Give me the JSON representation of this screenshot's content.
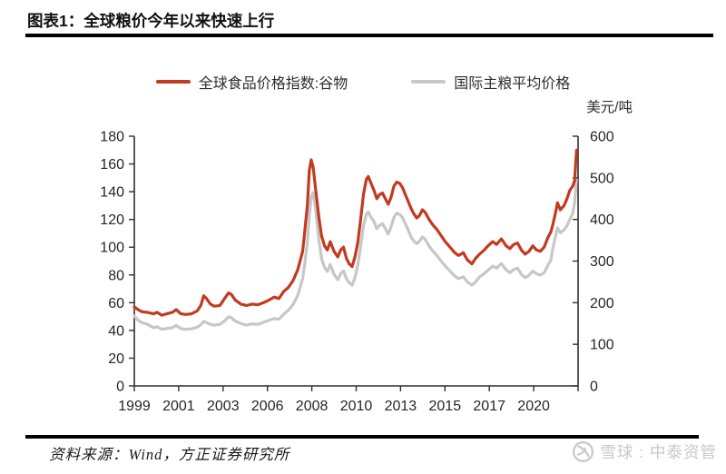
{
  "header": {
    "title": "图表1：全球粮价今年以来快速上行"
  },
  "footer": {
    "source": "资料来源：Wind，方正证券研究所",
    "watermark": "雪球 : 中泰资管",
    "logo_icon": "xueqiu-snowball-icon"
  },
  "colors": {
    "red_line": "#c23a20",
    "gray_line": "#c7c7c7",
    "axis": "#2f2f2f",
    "text": "#262626",
    "rule": "#000000",
    "watermark": "#c8c8c8"
  },
  "chart_data": {
    "type": "line",
    "title": "全球粮价今年以来快速上行",
    "unit_label": "美元/吨",
    "legend_position": "top-center",
    "grid": false,
    "legend": [
      {
        "name": "全球食品价格指数:谷物",
        "color_key": "red_line",
        "axis": "left"
      },
      {
        "name": "国际主粮平均价格",
        "color_key": "gray_line",
        "axis": "right"
      }
    ],
    "left_axis": {
      "min": 0,
      "max": 180,
      "step": 20,
      "ticks": [
        0,
        20,
        40,
        60,
        80,
        100,
        120,
        140,
        160,
        180
      ]
    },
    "right_axis": {
      "min": 0,
      "max": 600,
      "step": 100,
      "label": "美元/吨",
      "ticks": [
        0,
        100,
        200,
        300,
        400,
        500,
        600
      ]
    },
    "x_axis": {
      "start_year": 1999,
      "months_per_tick": 28,
      "num_ticks": 11,
      "tick_labels": [
        "1999",
        "2001",
        "2003",
        "2006",
        "2008",
        "2010",
        "2013",
        "2015",
        "2017",
        "2020"
      ]
    },
    "years": [
      1999.0,
      1999.2,
      1999.4,
      1999.7,
      2000.0,
      2000.2,
      2000.45,
      2000.7,
      2001.0,
      2001.2,
      2001.45,
      2001.7,
      2002.0,
      2002.3,
      2002.5,
      2002.65,
      2002.8,
      2003.0,
      2003.2,
      2003.5,
      2003.75,
      2003.95,
      2004.1,
      2004.3,
      2004.6,
      2004.9,
      2005.2,
      2005.5,
      2005.8,
      2006.1,
      2006.35,
      2006.6,
      2006.85,
      2007.1,
      2007.35,
      2007.6,
      2007.85,
      2007.95,
      2008.1,
      2008.2,
      2008.3,
      2008.4,
      2008.55,
      2008.7,
      2008.85,
      2009.0,
      2009.15,
      2009.3,
      2009.5,
      2009.7,
      2009.85,
      2010.0,
      2010.15,
      2010.3,
      2010.45,
      2010.6,
      2010.75,
      2010.9,
      2011.05,
      2011.2,
      2011.3,
      2011.45,
      2011.6,
      2011.75,
      2011.9,
      2012.05,
      2012.2,
      2012.35,
      2012.5,
      2012.65,
      2012.8,
      2012.95,
      2013.1,
      2013.25,
      2013.4,
      2013.55,
      2013.7,
      2013.85,
      2014.0,
      2014.15,
      2014.3,
      2014.5,
      2014.7,
      2014.9,
      2015.1,
      2015.35,
      2015.6,
      2015.85,
      2016.05,
      2016.3,
      2016.5,
      2016.75,
      2016.95,
      2017.15,
      2017.4,
      2017.6,
      2017.85,
      2018.05,
      2018.3,
      2018.55,
      2018.75,
      2018.95,
      2019.15,
      2019.35,
      2019.55,
      2019.75,
      2019.95,
      2020.15,
      2020.35,
      2020.55,
      2020.75,
      2020.9,
      2021.0,
      2021.15,
      2021.25,
      2021.4,
      2021.6,
      2021.75,
      2021.9,
      2022.05,
      2022.15,
      2022.25
    ],
    "series": [
      {
        "name": "全球食品价格指数:谷物",
        "axis": "left",
        "color_key": "red_line",
        "values": [
          57,
          55,
          53.5,
          53,
          52,
          53,
          51,
          52,
          53,
          55,
          52,
          51.5,
          52,
          54,
          58,
          65,
          63,
          59,
          57.5,
          58,
          63,
          67,
          66,
          62,
          59,
          58,
          59,
          58.5,
          60,
          62,
          64,
          63,
          68,
          71,
          76,
          84,
          97,
          110,
          130,
          155,
          163,
          158,
          140,
          122,
          108,
          101,
          98,
          104,
          97,
          93,
          98,
          100,
          92,
          88,
          86,
          93,
          103,
          120,
          138,
          149,
          151,
          146,
          141,
          135,
          138,
          139,
          135,
          131,
          136,
          144,
          147,
          146,
          143,
          138,
          133,
          128,
          124,
          121,
          123,
          127,
          125,
          120,
          116,
          113,
          109,
          104,
          100,
          96,
          94,
          96,
          91,
          88,
          92,
          95,
          98,
          101,
          104,
          102,
          106,
          101,
          99,
          102,
          103,
          98,
          95,
          97,
          101,
          98,
          97,
          100,
          107,
          111,
          116,
          125,
          132,
          127,
          130,
          135,
          141,
          144,
          148,
          170
        ]
      },
      {
        "name": "国际主粮平均价格",
        "axis": "right",
        "color_key": "gray_line",
        "values": [
          168,
          158,
          152,
          148,
          140,
          142,
          136,
          138,
          140,
          145,
          138,
          136,
          137,
          141,
          147,
          155,
          152,
          148,
          146,
          148,
          156,
          166,
          164,
          156,
          150,
          146,
          149,
          148,
          153,
          158,
          162,
          160,
          172,
          182,
          196,
          218,
          258,
          290,
          345,
          405,
          455,
          465,
          420,
          352,
          305,
          285,
          275,
          292,
          268,
          255,
          270,
          276,
          258,
          248,
          242,
          260,
          290,
          335,
          385,
          412,
          418,
          405,
          395,
          378,
          386,
          390,
          378,
          365,
          382,
          405,
          415,
          412,
          405,
          390,
          375,
          358,
          348,
          342,
          348,
          358,
          352,
          336,
          324,
          314,
          302,
          288,
          276,
          264,
          258,
          262,
          250,
          242,
          250,
          262,
          270,
          278,
          288,
          283,
          294,
          279,
          272,
          280,
          283,
          268,
          260,
          266,
          276,
          270,
          266,
          272,
          290,
          302,
          330,
          360,
          380,
          368,
          375,
          385,
          400,
          415,
          440,
          495
        ]
      }
    ]
  }
}
